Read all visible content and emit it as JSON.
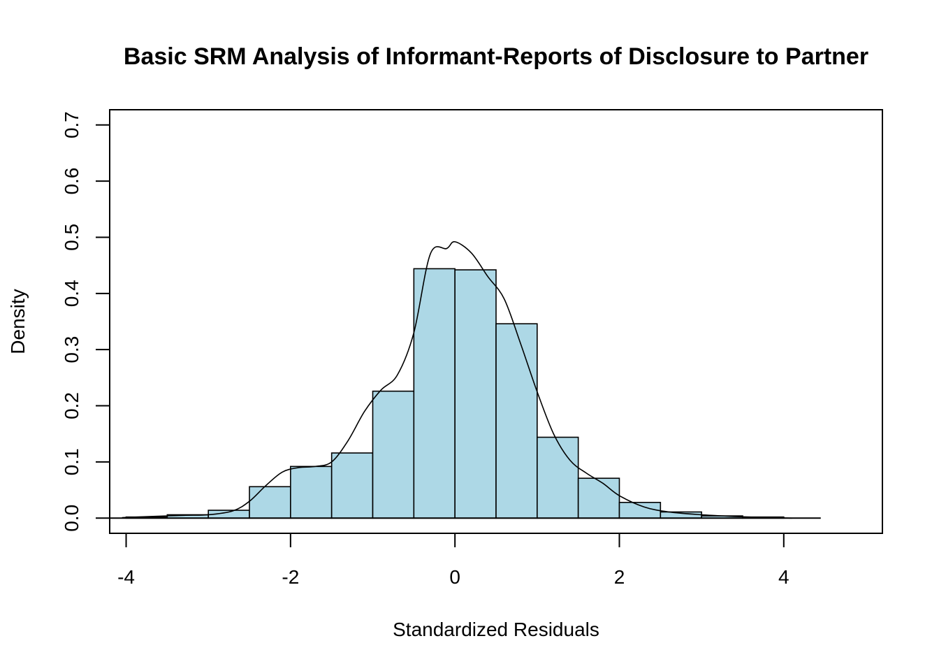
{
  "chart_data": {
    "type": "bar",
    "title": "Basic SRM Analysis of Informant-Reports of Disclosure to Partner",
    "xlabel": "Standardized Residuals",
    "ylabel": "Density",
    "xlim": [
      -4.2,
      5.2
    ],
    "ylim": [
      -0.027,
      0.727
    ],
    "x_ticks": [
      -4,
      -2,
      0,
      2,
      4
    ],
    "y_ticks": [
      0.0,
      0.1,
      0.2,
      0.3,
      0.4,
      0.5,
      0.6,
      0.7
    ],
    "x_tick_labels": [
      "-4",
      "-2",
      "0",
      "2",
      "4"
    ],
    "y_tick_labels": [
      "0.0",
      "0.1",
      "0.2",
      "0.3",
      "0.4",
      "0.5",
      "0.6",
      "0.7"
    ],
    "bar_color": "#add8e6",
    "grid": false,
    "bins": [
      {
        "x0": -4.0,
        "x1": -3.5,
        "density": 0.002
      },
      {
        "x0": -3.5,
        "x1": -3.0,
        "density": 0.006
      },
      {
        "x0": -3.0,
        "x1": -2.5,
        "density": 0.014
      },
      {
        "x0": -2.5,
        "x1": -2.0,
        "density": 0.056
      },
      {
        "x0": -2.0,
        "x1": -1.5,
        "density": 0.092
      },
      {
        "x0": -1.5,
        "x1": -1.0,
        "density": 0.116
      },
      {
        "x0": -1.0,
        "x1": -0.5,
        "density": 0.226
      },
      {
        "x0": -0.5,
        "x1": 0.0,
        "density": 0.444
      },
      {
        "x0": 0.0,
        "x1": 0.5,
        "density": 0.442
      },
      {
        "x0": 0.5,
        "x1": 1.0,
        "density": 0.346
      },
      {
        "x0": 1.0,
        "x1": 1.5,
        "density": 0.144
      },
      {
        "x0": 1.5,
        "x1": 2.0,
        "density": 0.071
      },
      {
        "x0": 2.0,
        "x1": 2.5,
        "density": 0.028
      },
      {
        "x0": 2.5,
        "x1": 3.0,
        "density": 0.011
      },
      {
        "x0": 3.0,
        "x1": 3.5,
        "density": 0.004
      },
      {
        "x0": 3.5,
        "x1": 4.0,
        "density": 0.002
      }
    ],
    "density_curve": {
      "x": [
        -4.05,
        -3.7,
        -3.3,
        -3.0,
        -2.7,
        -2.5,
        -2.3,
        -2.1,
        -1.9,
        -1.7,
        -1.5,
        -1.3,
        -1.1,
        -0.9,
        -0.7,
        -0.5,
        -0.3,
        -0.1,
        0.0,
        0.2,
        0.4,
        0.6,
        0.8,
        1.0,
        1.2,
        1.4,
        1.6,
        1.8,
        2.0,
        2.3,
        2.6,
        3.0,
        3.4,
        3.8,
        4.1
      ],
      "y": [
        0.001,
        0.003,
        0.005,
        0.006,
        0.013,
        0.03,
        0.058,
        0.082,
        0.09,
        0.092,
        0.1,
        0.138,
        0.19,
        0.228,
        0.255,
        0.33,
        0.47,
        0.48,
        0.492,
        0.472,
        0.43,
        0.39,
        0.31,
        0.225,
        0.15,
        0.103,
        0.08,
        0.062,
        0.04,
        0.02,
        0.011,
        0.006,
        0.003,
        0.001,
        0.0
      ]
    },
    "baseline_x": [
      -4.2,
      4.45
    ]
  }
}
